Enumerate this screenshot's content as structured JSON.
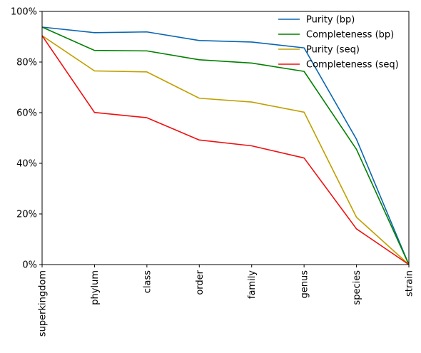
{
  "chart_data": {
    "type": "line",
    "categories": [
      "superkingdom",
      "phylum",
      "class",
      "order",
      "family",
      "genus",
      "species",
      "strain"
    ],
    "y_ticks": [
      "0%",
      "20%",
      "40%",
      "60%",
      "80%",
      "100%"
    ],
    "ylim": [
      0,
      100
    ],
    "y_unit": "%",
    "grid": false,
    "legend_position": "top-right",
    "series": [
      {
        "name": "Purity (bp)",
        "color": "#0a66b0",
        "values": [
          93.8,
          91.6,
          91.9,
          88.5,
          87.9,
          85.6,
          49.5,
          0.0
        ]
      },
      {
        "name": "Completeness (bp)",
        "color": "#008000",
        "values": [
          93.8,
          84.6,
          84.4,
          80.9,
          79.6,
          76.3,
          45.5,
          0.0
        ]
      },
      {
        "name": "Purity (seq)",
        "color": "#c0a000",
        "values": [
          90.4,
          76.5,
          76.1,
          65.7,
          64.2,
          60.2,
          18.7,
          0.0
        ]
      },
      {
        "name": "Completeness (seq)",
        "color": "#ee1010",
        "values": [
          90.4,
          60.1,
          58.0,
          49.2,
          46.9,
          42.1,
          14.1,
          0.0
        ]
      }
    ]
  }
}
